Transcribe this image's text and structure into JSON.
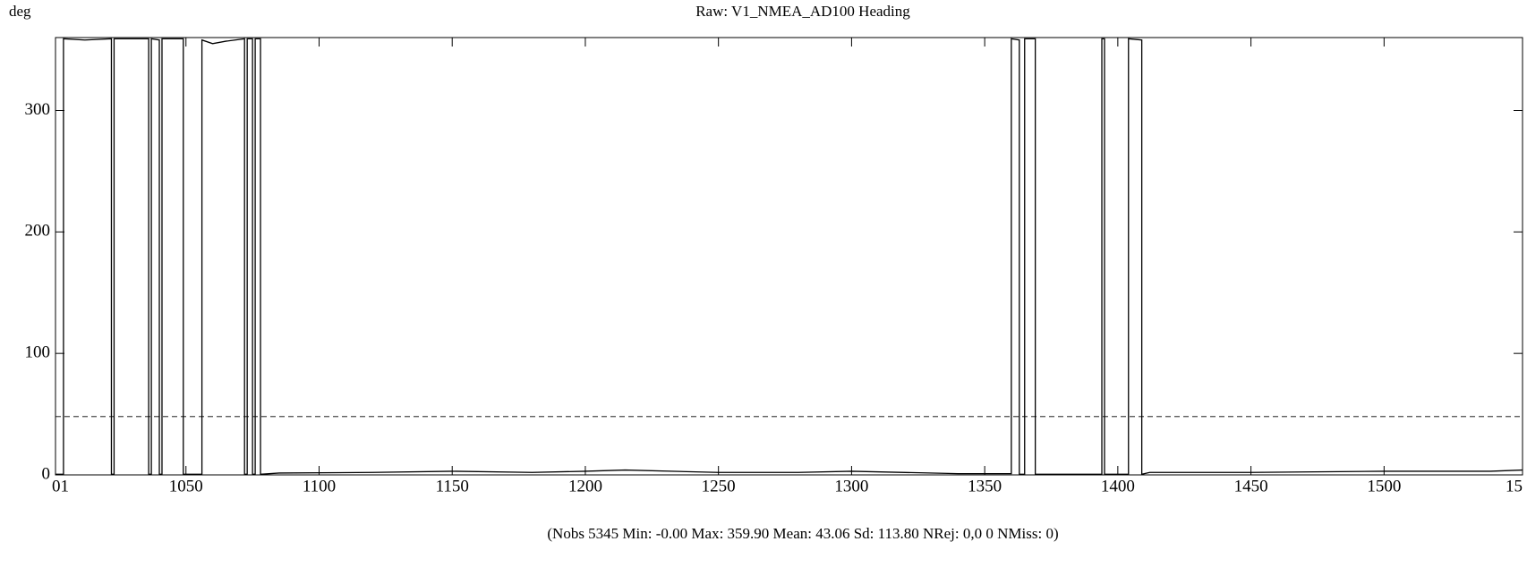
{
  "chart_data": {
    "type": "line",
    "title": "Raw: V1_NMEA_AD100 Heading",
    "y_label": "deg",
    "footer": "(Nobs 5345 Min: -0.00 Max: 359.90 Mean: 43.06 Sd: 113.80 NRej: 0,0 0 NMiss: 0)",
    "x": [
      1001,
      1004,
      1004,
      1012,
      1022,
      1022,
      1023,
      1023,
      1036,
      1036,
      1037,
      1037,
      1040,
      1040,
      1041,
      1041,
      1049,
      1049,
      1056,
      1056,
      1060,
      1065,
      1072,
      1072,
      1073,
      1073,
      1075,
      1075,
      1076,
      1076,
      1078,
      1078,
      1085,
      1120,
      1150,
      1180,
      1200,
      1215,
      1250,
      1280,
      1300,
      1340,
      1360,
      1360,
      1363,
      1363,
      1365,
      1365,
      1369,
      1369,
      1394,
      1394,
      1395,
      1395,
      1404,
      1404,
      1409,
      1409,
      1412,
      1450,
      1500,
      1540,
      1552
    ],
    "series": [
      {
        "color": "#000000",
        "values": [
          0.5,
          0.5,
          359,
          358,
          359,
          0.5,
          0.5,
          359,
          359,
          0.5,
          0.5,
          359,
          358,
          0.5,
          0.5,
          359,
          359,
          0.5,
          0.5,
          358,
          355,
          357,
          359,
          0.5,
          0.5,
          359,
          359,
          0.5,
          0.5,
          359,
          359,
          0.5,
          1.5,
          2,
          3,
          2,
          3,
          4,
          2,
          2,
          3,
          1,
          1,
          359,
          358,
          0.5,
          0.5,
          359,
          359,
          0.5,
          0.5,
          359,
          359,
          0.5,
          0.5,
          359,
          358,
          0.5,
          2,
          2,
          3,
          3,
          4
        ]
      }
    ],
    "reference_line": 48,
    "xlim": [
      1001,
      1552
    ],
    "ylim": [
      0,
      360
    ],
    "xticks": [
      {
        "value": 1001,
        "label": "01"
      },
      1050,
      1100,
      1150,
      1200,
      1250,
      1300,
      1350,
      1400,
      1450,
      1500,
      {
        "value": 1552,
        "label": "15"
      }
    ],
    "yticks": [
      0,
      100,
      200,
      300
    ]
  }
}
